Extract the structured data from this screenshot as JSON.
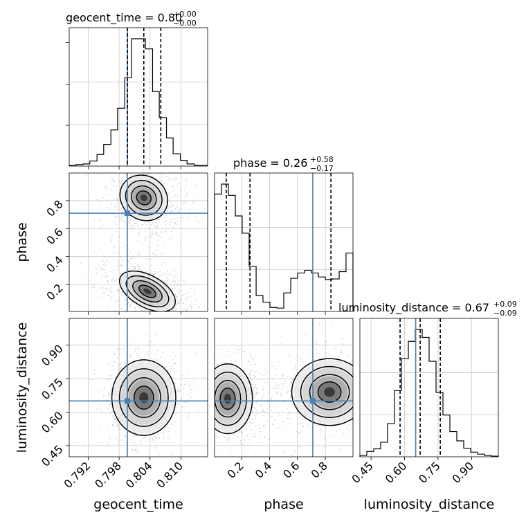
{
  "chart_data": {
    "type": "corner",
    "truth_color": "#4682b4",
    "hist_color": "#000000",
    "parameters": [
      {
        "name": "geocent_time",
        "label": "geocent_time",
        "range": [
          0.7883,
          0.8152
        ],
        "ticks": [
          "0.792",
          "0.798",
          "0.804",
          "0.810"
        ],
        "tick_values": [
          0.792,
          0.798,
          0.804,
          0.81
        ],
        "truth": 0.7996,
        "quantiles": [
          0.7996,
          0.8028,
          0.8061
        ]
      },
      {
        "name": "phase",
        "label": "phase",
        "range": [
          0.006,
          0.998
        ],
        "ticks": [
          "0.2",
          "0.4",
          "0.6",
          "0.8"
        ],
        "tick_values": [
          0.2,
          0.4,
          0.6,
          0.8
        ],
        "truth": 0.71,
        "quantiles": [
          0.09,
          0.26,
          0.84
        ]
      },
      {
        "name": "luminosity_distance",
        "label": "luminosity_distance",
        "range": [
          0.4,
          1.02
        ],
        "ticks": [
          "0.45",
          "0.60",
          "0.75",
          "0.90"
        ],
        "tick_values": [
          0.45,
          0.6,
          0.75,
          0.9
        ],
        "truth": 0.65,
        "quantiles": [
          0.58,
          0.67,
          0.76
        ]
      }
    ],
    "titles": [
      {
        "text": "geocent_time = 0.80",
        "sup": "+0.00",
        "sub": "−0.00"
      },
      {
        "text": "phase = 0.26",
        "sup": "+0.58",
        "sub": "−0.17"
      },
      {
        "text": "luminosity_distance = 0.67",
        "sup": "+0.09",
        "sub": "−0.09"
      }
    ],
    "histograms": {
      "geocent_time": {
        "bin_edges": [
          0.7883,
          0.7896,
          0.791,
          0.7923,
          0.7937,
          0.795,
          0.7964,
          0.7977,
          0.7991,
          0.8004,
          0.8018,
          0.8031,
          0.8045,
          0.8058,
          0.8072,
          0.8085,
          0.8099,
          0.8112,
          0.8126,
          0.8139,
          0.8152
        ],
        "counts": [
          1,
          2,
          3,
          7,
          16,
          30,
          50,
          80,
          122,
          176,
          176,
          162,
          103,
          67,
          39,
          17,
          8,
          3,
          1,
          1
        ]
      },
      "phase": {
        "bin_edges": [
          0.006,
          0.056,
          0.105,
          0.155,
          0.204,
          0.254,
          0.304,
          0.353,
          0.403,
          0.452,
          0.502,
          0.552,
          0.601,
          0.651,
          0.7,
          0.75,
          0.8,
          0.849,
          0.899,
          0.948,
          0.998
        ],
        "counts": [
          177,
          192,
          175,
          144,
          118,
          68,
          24,
          14,
          6,
          5,
          28,
          50,
          58,
          62,
          58,
          52,
          48,
          49,
          60,
          88
        ]
      },
      "luminosity_distance": {
        "bin_edges": [
          0.4,
          0.431,
          0.462,
          0.493,
          0.524,
          0.555,
          0.586,
          0.617,
          0.648,
          0.679,
          0.71,
          0.741,
          0.772,
          0.803,
          0.834,
          0.865,
          0.896,
          0.927,
          0.958,
          0.989,
          1.02
        ],
        "counts": [
          2,
          8,
          12,
          22,
          50,
          100,
          148,
          174,
          192,
          180,
          144,
          97,
          63,
          38,
          24,
          13,
          7,
          4,
          2,
          1
        ]
      }
    }
  }
}
